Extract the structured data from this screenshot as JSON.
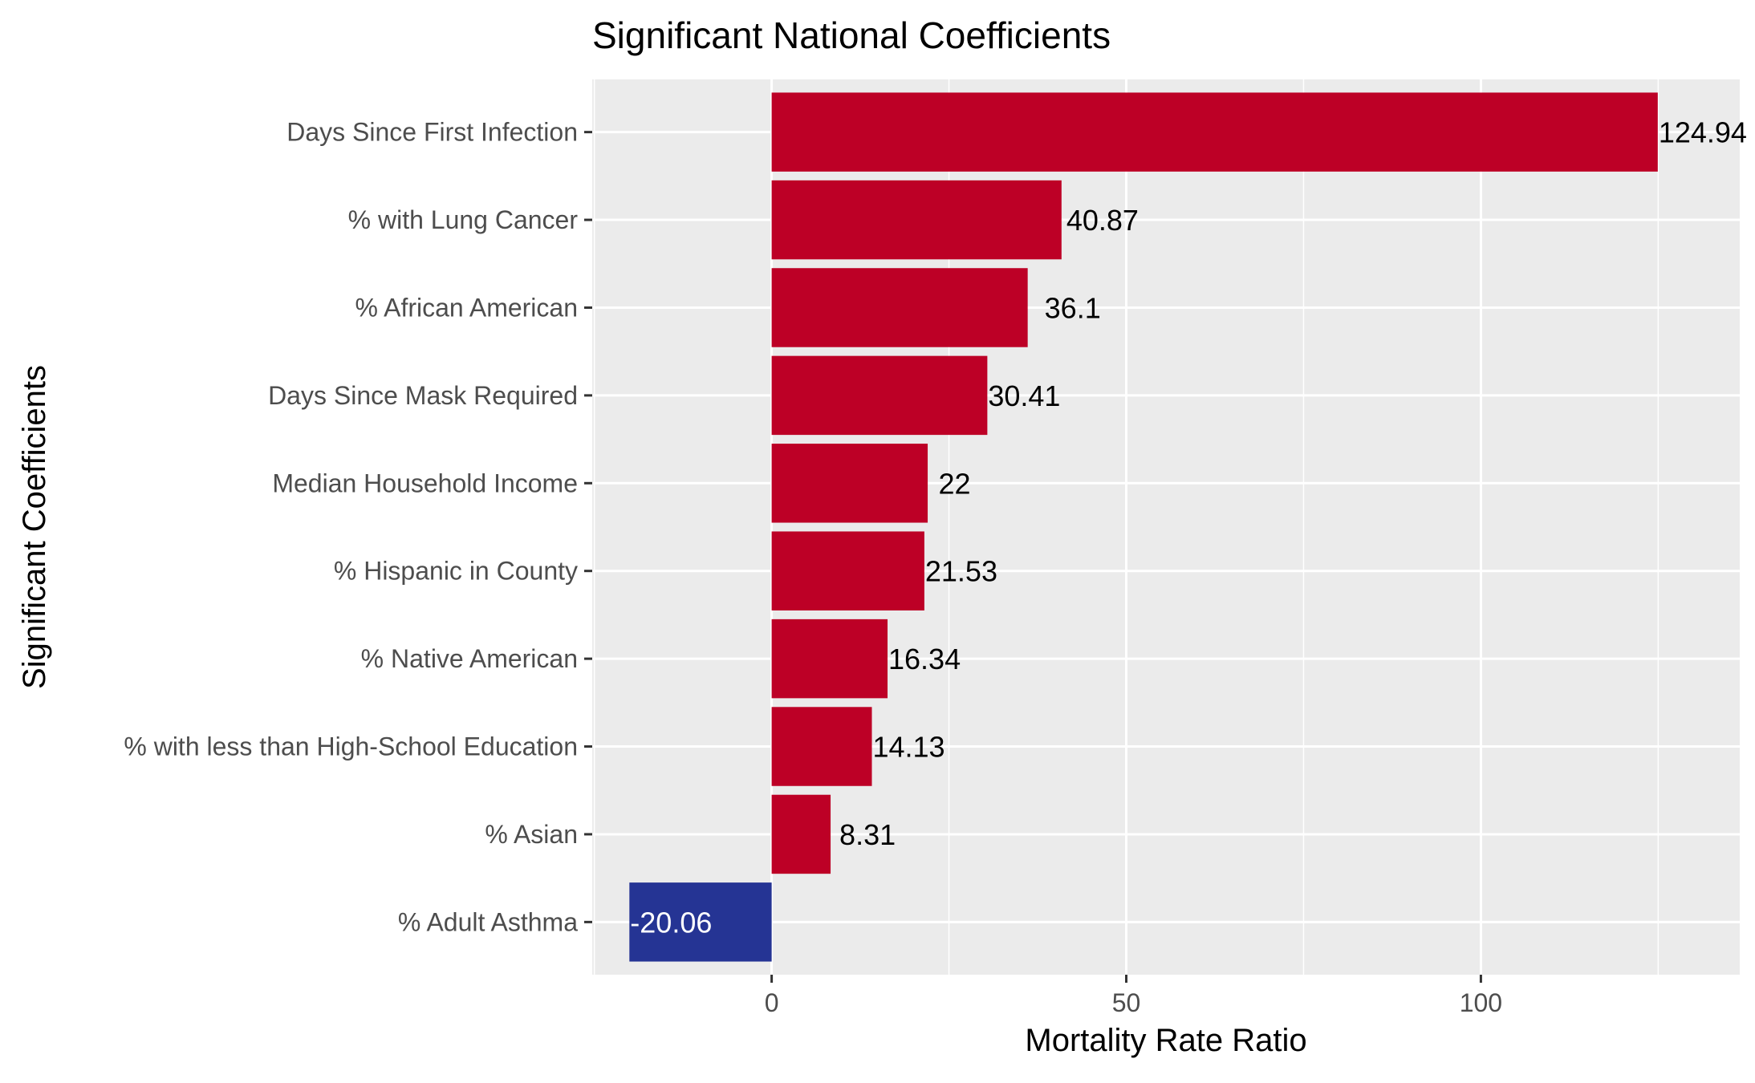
{
  "chart_data": {
    "type": "bar",
    "orientation": "horizontal",
    "title": "Significant National Coefficients",
    "xlabel": "Mortality Rate Ratio",
    "ylabel": "Significant Coefficients",
    "xlim": [
      -25.3,
      136.5
    ],
    "x_ticks": [
      0,
      50,
      100
    ],
    "grid": true,
    "legend": "none",
    "categories": [
      "Days Since First Infection",
      "% with Lung Cancer",
      "% African American",
      "Days Since Mask Required",
      "Median Household Income",
      "% Hispanic in County",
      "% Native American",
      "% with less than High-School Education",
      "% Asian",
      "% Adult Asthma"
    ],
    "values": [
      124.94,
      40.87,
      36.1,
      30.41,
      22,
      21.53,
      16.34,
      14.13,
      8.31,
      -20.06
    ],
    "data_labels": [
      "124.94",
      "40.87",
      "36.1",
      "30.41",
      "22",
      "21.53",
      "16.34",
      "14.13",
      "8.31",
      "-20.06"
    ],
    "colors": {
      "positive": "#bd0026",
      "negative": "#253494",
      "panel": "#ebebeb",
      "grid": "#ffffff",
      "label_on_negative": "#ffffff",
      "label_default": "#000000"
    }
  }
}
